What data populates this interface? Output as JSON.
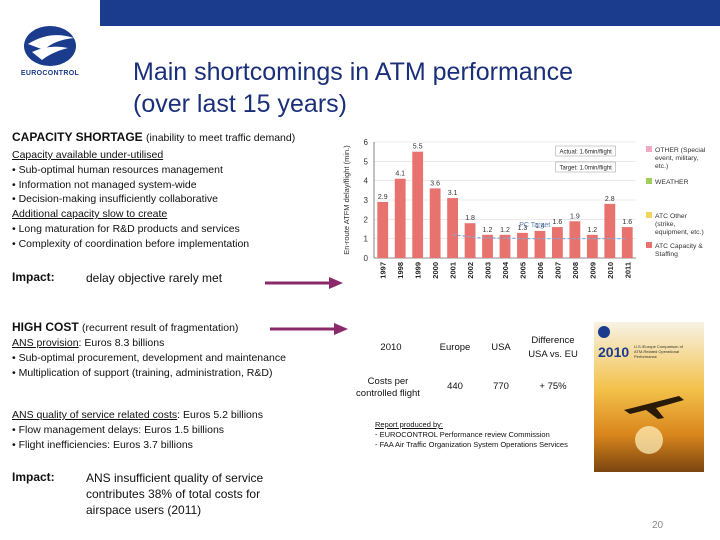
{
  "header": {
    "logo_text": "EUROCONTROL",
    "title_line1": "Main shortcomings in ATM performance",
    "title_line2": "(over last 15 years)"
  },
  "capacity": {
    "heading": "CAPACITY SHORTAGE",
    "heading_sub": "(inability to meet traffic demand)",
    "lines": [
      "Capacity available under-utilised",
      "• Sub-optimal human resources management",
      "• Information not managed system-wide",
      "• Decision-making insufficiently collaborative",
      "Additional capacity slow to create",
      "• Long maturation for R&D products and services",
      "• Complexity of coordination before implementation"
    ],
    "impact_label": "Impact:",
    "impact_text": "delay objective rarely met"
  },
  "cost": {
    "heading": "HIGH COST",
    "heading_sub": "(recurrent result of fragmentation)",
    "provision_title": "ANS provision",
    "provision_value": ": Euros 8.3 billions",
    "provision_lines": [
      "• Sub-optimal procurement, development and maintenance",
      "• Multiplication of support (training, administration, R&D)"
    ],
    "quality_title": "ANS quality of service related costs",
    "quality_value": ": Euros 5.2 billions",
    "quality_lines": [
      "• Flow management delays: Euros 1.5 billions",
      "• Flight inefficiencies: Euros 3.7 billions"
    ],
    "impact_label": "Impact:",
    "impact_lines": [
      "ANS insufficient quality of service",
      "contributes 38% of total costs for",
      "airspace users (2011)"
    ]
  },
  "table": {
    "year": "2010",
    "col_europe": "Europe",
    "col_usa": "USA",
    "col_diff_1": "Difference",
    "col_diff_2": "USA vs. EU",
    "row_label_1": "Costs per",
    "row_label_2": "controlled flight",
    "val_europe": "440",
    "val_usa": "770",
    "val_diff": "+ 75%"
  },
  "report": {
    "title": "Report produced by:",
    "line1": "- EUROCONTROL Performance review Commission",
    "line2": "- FAA Air Traffic Organization System Operations Services",
    "cover_year": "2010",
    "cover_title_1": "U.S./Europe Comparison of",
    "cover_title_2": "ATM-Related Operational Performance"
  },
  "page_number": "20",
  "colors": {
    "brand": "#1b3b8c",
    "bar": "#e8736e",
    "arrow": "#8b2a6b",
    "target": "#7ea9d8"
  },
  "chart_data": {
    "type": "bar",
    "title": "",
    "ylabel": "En-route ATFM delay/flight (min.)",
    "xlabel": "",
    "ylim": [
      0,
      6
    ],
    "yticks": [
      "0",
      "1",
      "2",
      "3",
      "4",
      "5",
      "6"
    ],
    "categories": [
      "1997",
      "1998",
      "1999",
      "2000",
      "2001",
      "2002",
      "2003",
      "2004",
      "2005",
      "2006",
      "2007",
      "2008",
      "2009",
      "2010",
      "2011"
    ],
    "values": [
      2.9,
      4.1,
      5.5,
      3.6,
      3.1,
      1.8,
      1.2,
      1.2,
      1.3,
      1.4,
      1.6,
      1.9,
      1.2,
      2.8,
      1.6
    ],
    "value_labels": [
      "2.9",
      "4.1",
      "5.5",
      "3.6",
      "3.1",
      "1.8",
      "1.2",
      "1.2",
      "1.3",
      "1.4",
      "1.6",
      "1.9",
      "1.2",
      "2.8",
      "1.6"
    ],
    "target_label": "PC Target",
    "actual_box": "Actual: 1.6min/flight",
    "target_box": "Target: 1.0min/flight",
    "legend": [
      {
        "label": "OTHER (Special event, military, etc.)",
        "color": "#f3a8c6"
      },
      {
        "label": "WEATHER",
        "color": "#9fcf5b"
      },
      {
        "label": "ATC Other (strike, equipment, etc.)",
        "color": "#f4d35e"
      },
      {
        "label": "ATC Capacity & Staffing",
        "color": "#e8736e"
      }
    ]
  }
}
